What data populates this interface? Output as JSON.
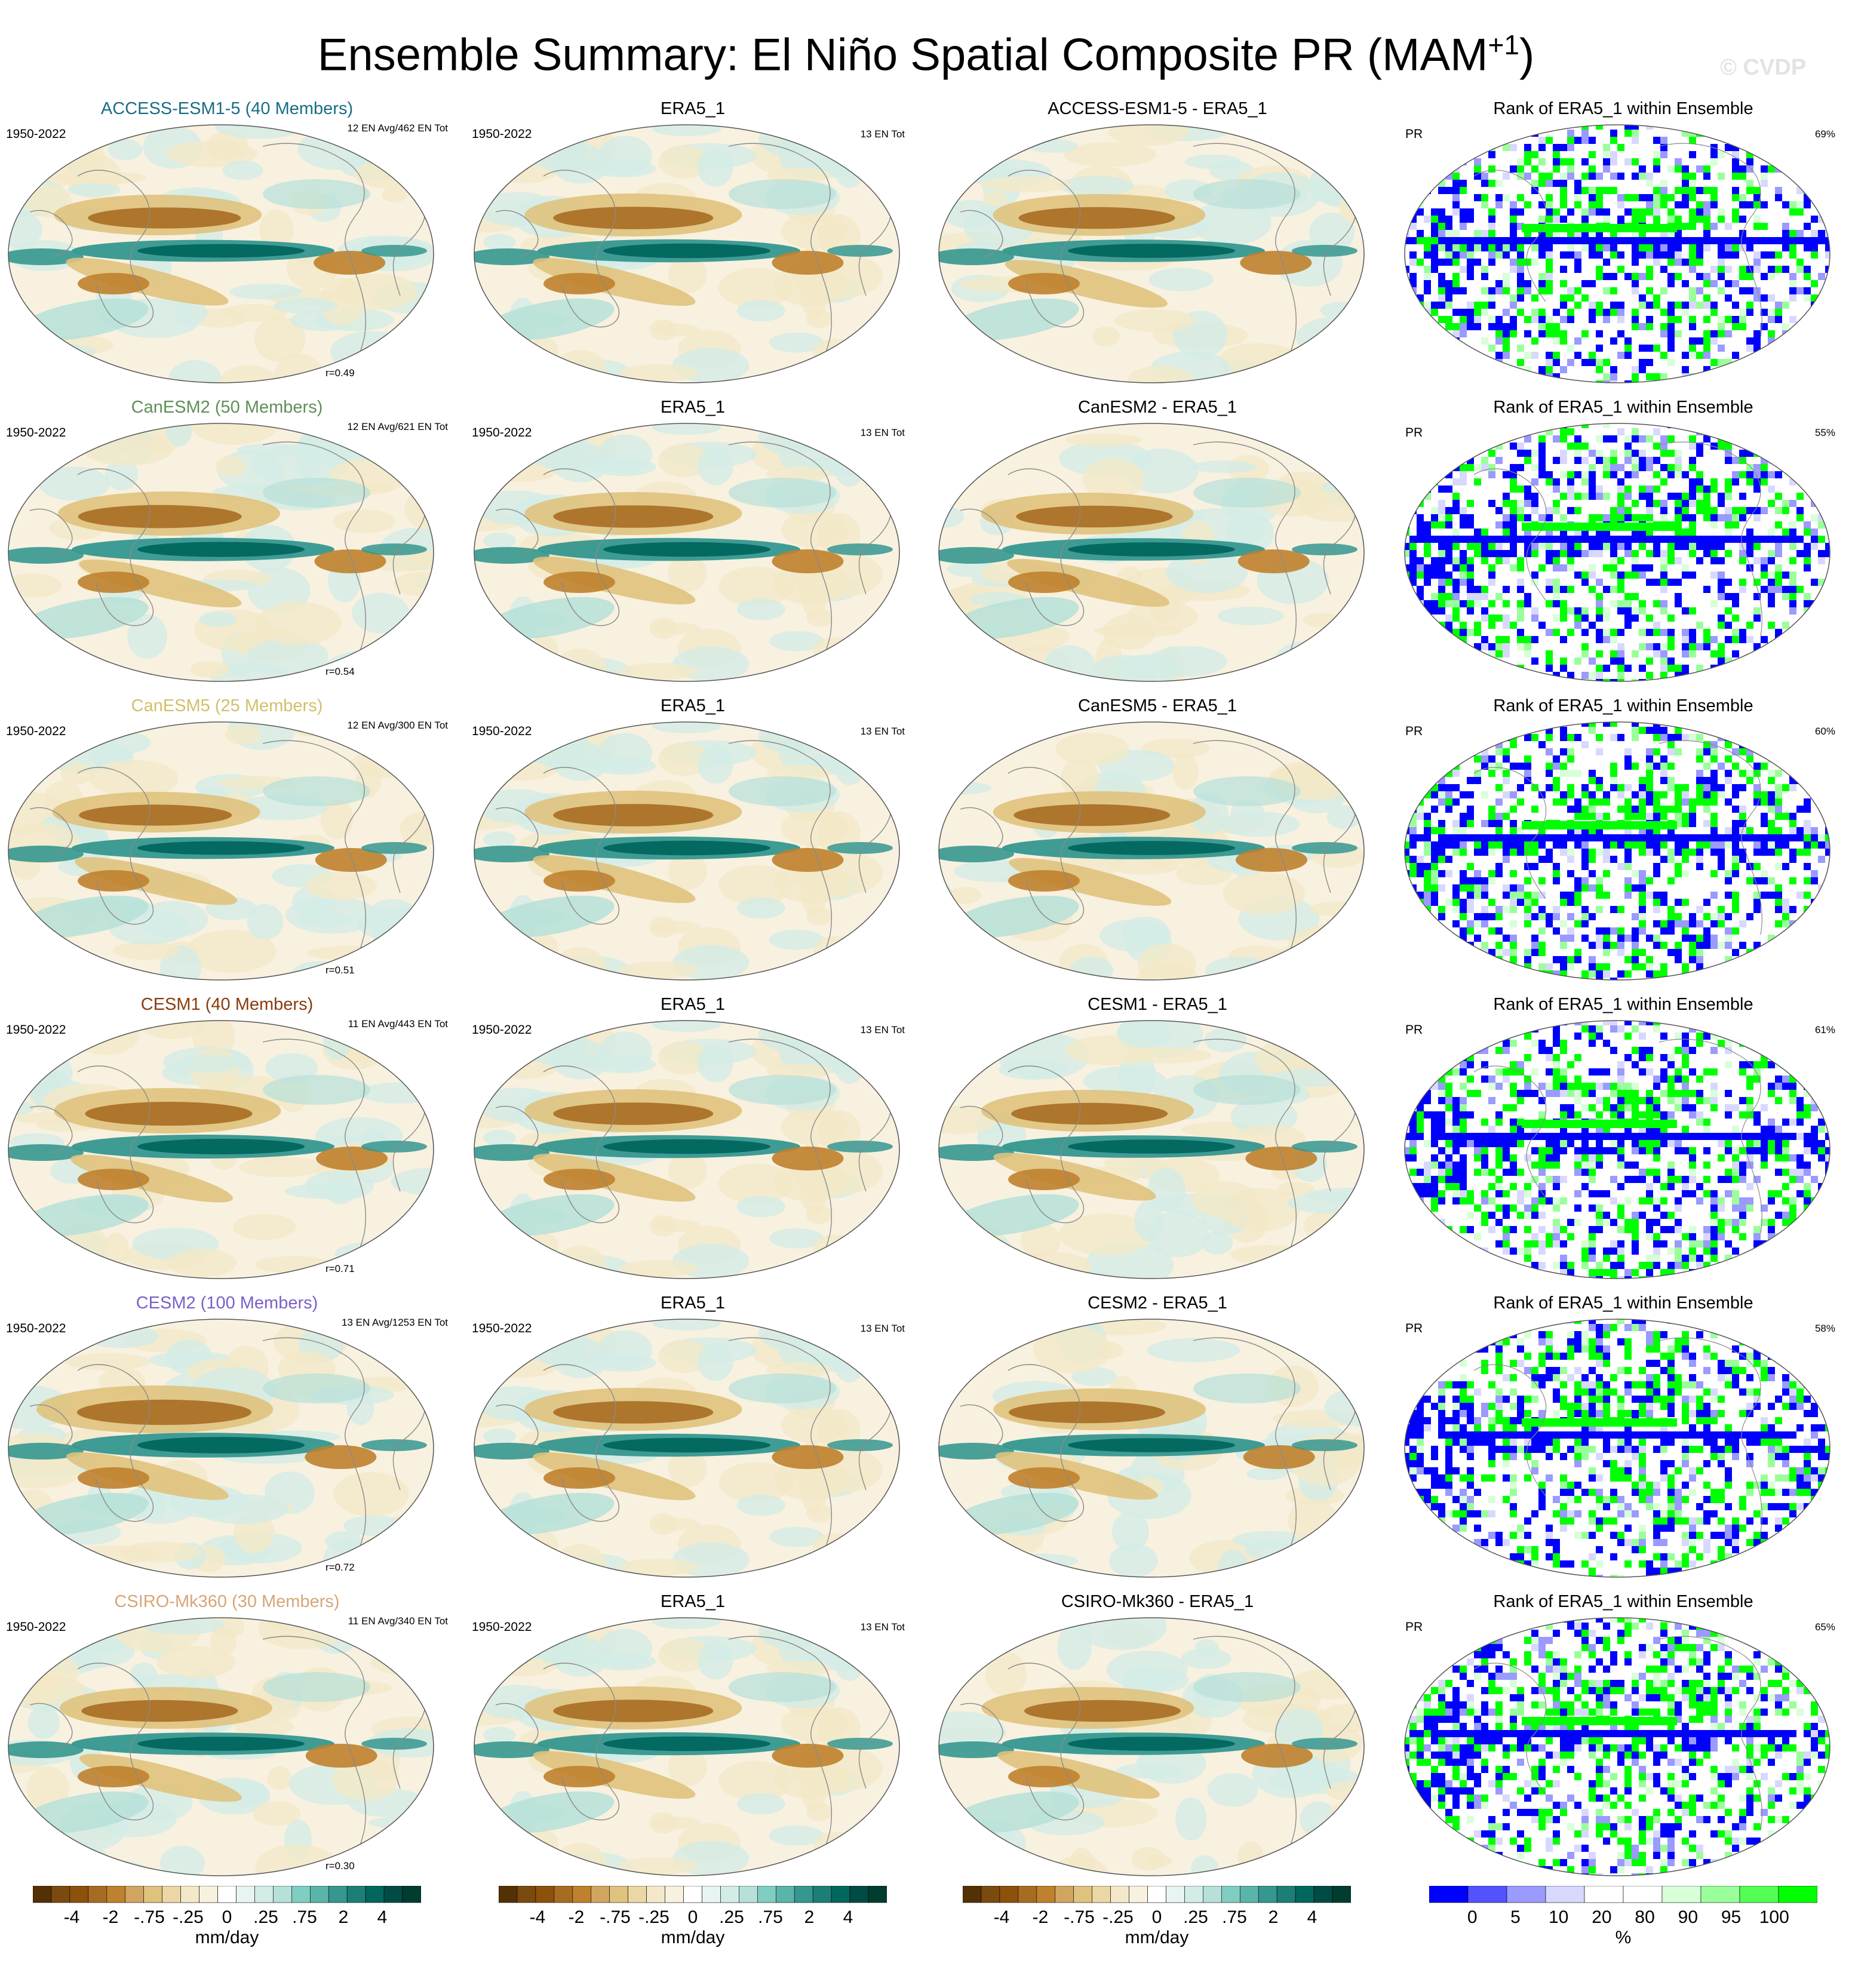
{
  "title": "Ensemble Summary: El Niño Spatial Composite PR (MAM",
  "title_sup": "+1",
  "title_close": ")",
  "watermark": "© CVDP",
  "colors": {
    "brown_dark": "#543005",
    "teal_dark": "#003c30",
    "rank_blue": "#0000ff",
    "rank_green": "#00ff00"
  },
  "chart_data": {
    "type": "heatmap",
    "projection": "Robinson-like global map",
    "rows": [
      {
        "model": "ACCESS-ESM1-5 (40 Members)",
        "model_color": "#1a6d84",
        "period": "1950-2022",
        "en_info": "12 EN Avg/462 EN Tot",
        "r": "r=0.49",
        "diff": "ACCESS-ESM1-5 - ERA5_1",
        "rank_pct": "69%"
      },
      {
        "model": "CanESM2 (50 Members)",
        "model_color": "#5f8f57",
        "period": "1950-2022",
        "en_info": "12 EN Avg/621 EN Tot",
        "r": "r=0.54",
        "diff": "CanESM2 - ERA5_1",
        "rank_pct": "55%"
      },
      {
        "model": "CanESM5 (25 Members)",
        "model_color": "#d2bf6a",
        "period": "1950-2022",
        "en_info": "12 EN Avg/300 EN Tot",
        "r": "r=0.51",
        "diff": "CanESM5 - ERA5_1",
        "rank_pct": "60%"
      },
      {
        "model": "CESM1 (40 Members)",
        "model_color": "#8b3b0e",
        "period": "1950-2022",
        "en_info": "11 EN Avg/443 EN Tot",
        "r": "r=0.71",
        "diff": "CESM1 - ERA5_1",
        "rank_pct": "61%"
      },
      {
        "model": "CESM2 (100 Members)",
        "model_color": "#7d5fc9",
        "period": "1950-2022",
        "en_info": "13 EN Avg/1253 EN Tot",
        "r": "r=0.72",
        "diff": "CESM2 - ERA5_1",
        "rank_pct": "58%"
      },
      {
        "model": "CSIRO-Mk360 (30 Members)",
        "model_color": "#d6a679",
        "period": "1950-2022",
        "en_info": "11 EN Avg/340 EN Tot",
        "r": "r=0.30",
        "diff": "CSIRO-Mk360 - ERA5_1",
        "rank_pct": "65%"
      }
    ],
    "obs": {
      "title": "ERA5_1",
      "period": "1950-2022",
      "en_info": "13 EN Tot"
    },
    "rank": {
      "title": "Rank of ERA5_1 within Ensemble",
      "var": "PR"
    },
    "colorbar_pr": {
      "labels": [
        "-4",
        "-2",
        "-.75",
        "-.25",
        "0",
        ".25",
        ".75",
        "2",
        "4"
      ],
      "units": "mm/day",
      "colors": [
        "#543005",
        "#7a4a0f",
        "#8c510a",
        "#a86b22",
        "#bf812d",
        "#d2a461",
        "#dfc27d",
        "#ebd7a5",
        "#f3e8c8",
        "#f8f1e0",
        "#ffffff",
        "#e8f4f1",
        "#d3ece6",
        "#b6e0d8",
        "#80cdc1",
        "#5ab4a8",
        "#35978f",
        "#1c7f76",
        "#01665e",
        "#004c44",
        "#003c30"
      ]
    },
    "colorbar_rank": {
      "labels": [
        "0",
        "5",
        "10",
        "20",
        "80",
        "90",
        "95",
        "100"
      ],
      "units": "%",
      "colors": [
        "#0000ff",
        "#5252ff",
        "#9a9aff",
        "#d8d8ff",
        "#ffffff",
        "#ffffff",
        "#d8ffd8",
        "#9aff9a",
        "#52ff52",
        "#00ff00"
      ]
    }
  }
}
